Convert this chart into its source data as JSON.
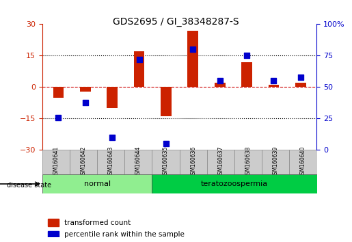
{
  "title": "GDS2695 / GI_38348287-S",
  "samples": [
    "GSM160641",
    "GSM160642",
    "GSM160643",
    "GSM160644",
    "GSM160635",
    "GSM160636",
    "GSM160637",
    "GSM160638",
    "GSM160639",
    "GSM160640"
  ],
  "transformed_count": [
    -5,
    -2,
    -10,
    17,
    -14,
    27,
    2,
    12,
    1,
    2
  ],
  "percentile_rank": [
    26,
    38,
    10,
    72,
    5,
    80,
    55,
    75,
    55,
    58
  ],
  "disease_groups": [
    {
      "label": "normal",
      "start": 0,
      "end": 4,
      "color": "#90EE90"
    },
    {
      "label": "teratozoospermia",
      "start": 4,
      "end": 10,
      "color": "#00CC44"
    }
  ],
  "ylim_left": [
    -30,
    30
  ],
  "ylim_right": [
    0,
    100
  ],
  "yticks_left": [
    -30,
    -15,
    0,
    15,
    30
  ],
  "yticks_right": [
    0,
    25,
    50,
    75,
    100
  ],
  "bar_color": "#CC2200",
  "dot_color": "#0000CC",
  "bar_width": 0.4,
  "dot_size": 40,
  "hline_color": "#CC0000",
  "grid_color": "black",
  "background_color": "white",
  "left_label_color": "#CC2200",
  "right_label_color": "#0000CC",
  "disease_state_label": "disease state",
  "legend_items": [
    "transformed count",
    "percentile rank within the sample"
  ]
}
